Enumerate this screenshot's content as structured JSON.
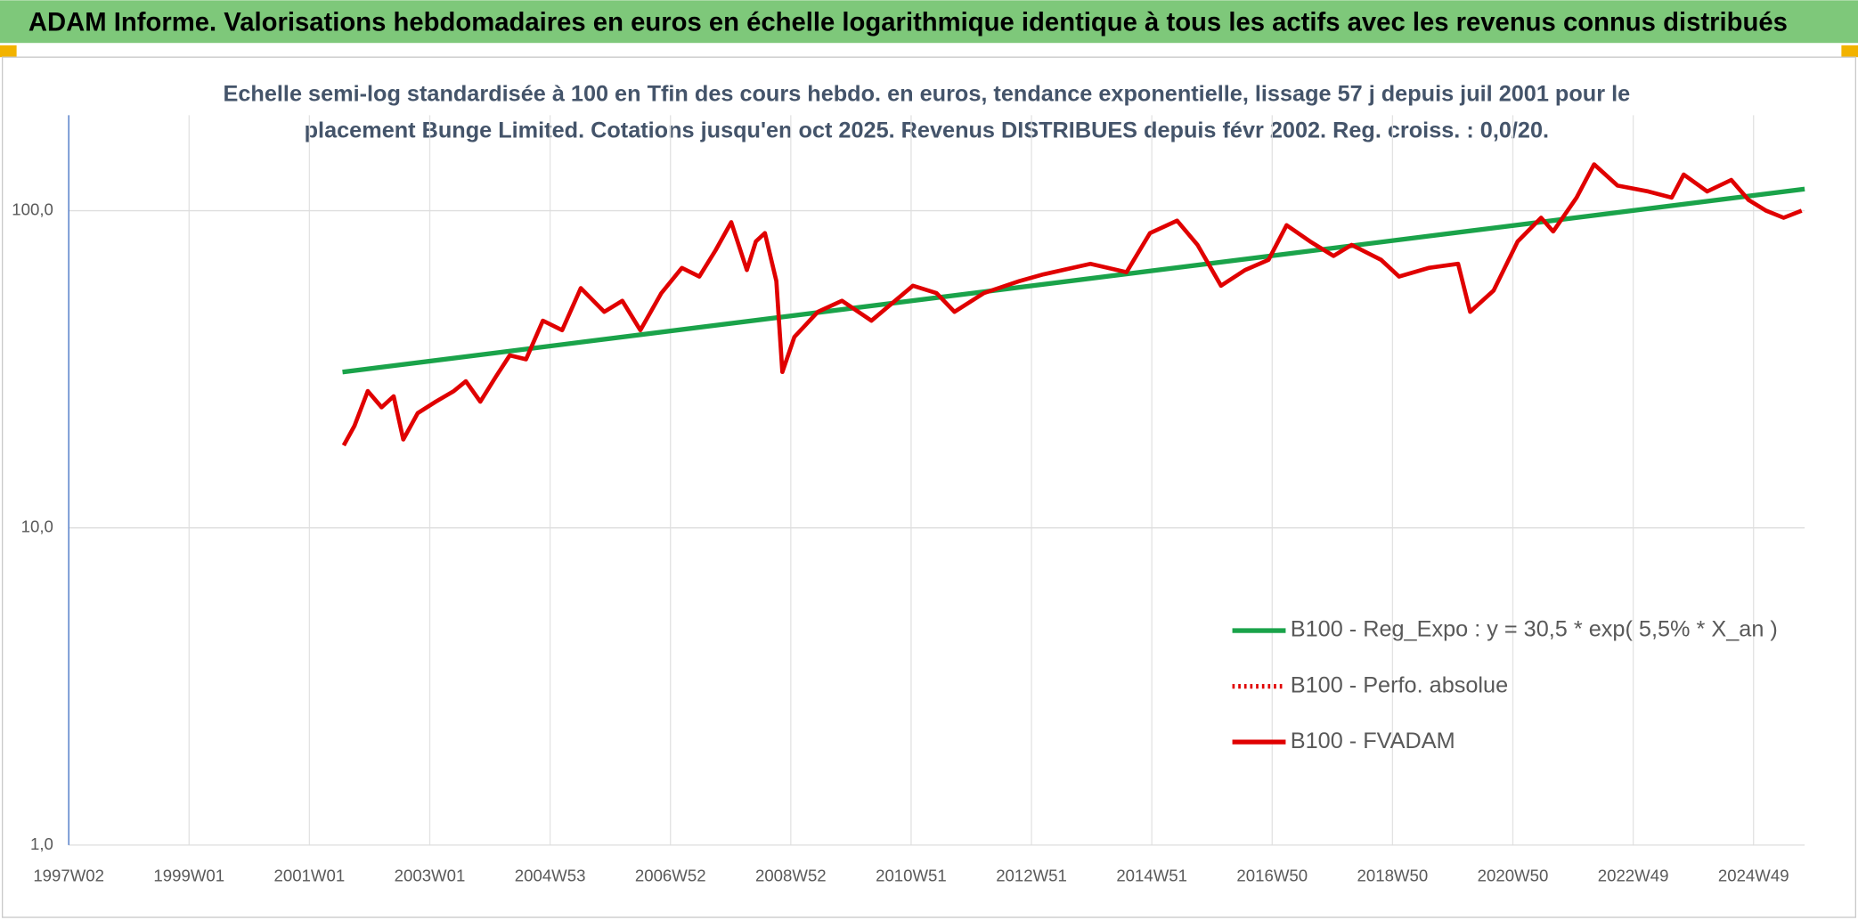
{
  "header": {
    "title": "ADAM Informe. Valorisations hebdomadaires en euros en échelle logarithmique identique à tous les actifs avec les revenus connus distribués"
  },
  "chart_data": {
    "type": "line",
    "subtitle": [
      "Echelle semi-log standardisée à 100 en Tfin des cours hebdo. en euros, tendance exponentielle, lissage 57 j depuis juil 2001 pour le",
      "placement Bunge Limited. Cotations jusqu'en oct 2025. Revenus DISTRIBUES depuis févr 2002. Reg. croiss. : 0,0/20."
    ],
    "y_scale": "log",
    "grid": true,
    "legend_position": "right",
    "xlim": [
      1997,
      2025.85
    ],
    "ylim": [
      1,
      200
    ],
    "xticks": [
      {
        "value": 1997,
        "label": "1997W02"
      },
      {
        "value": 1999,
        "label": "1999W01"
      },
      {
        "value": 2001,
        "label": "2001W01"
      },
      {
        "value": 2003,
        "label": "2003W01"
      },
      {
        "value": 2005,
        "label": "2004W53"
      },
      {
        "value": 2007,
        "label": "2006W52"
      },
      {
        "value": 2009,
        "label": "2008W52"
      },
      {
        "value": 2011,
        "label": "2010W51"
      },
      {
        "value": 2013,
        "label": "2012W51"
      },
      {
        "value": 2015,
        "label": "2014W51"
      },
      {
        "value": 2017,
        "label": "2016W50"
      },
      {
        "value": 2019,
        "label": "2018W50"
      },
      {
        "value": 2021,
        "label": "2020W50"
      },
      {
        "value": 2023,
        "label": "2022W49"
      },
      {
        "value": 2025,
        "label": "2024W49"
      }
    ],
    "yticks": [
      {
        "value": 1,
        "label": "1,0"
      },
      {
        "value": 10,
        "label": "10,0"
      },
      {
        "value": 100,
        "label": "100,0"
      }
    ],
    "series": [
      {
        "name": "B100 - Reg_Expo : y = 30,5 * exp( 5,5% *  X_an )",
        "color": "#1aa34a",
        "line_style": "solid",
        "x": [
          2001.55,
          2025.85
        ],
        "values": [
          31,
          117
        ]
      },
      {
        "name": "B100 - Perfo. absolue",
        "color": "#e00000",
        "line_style": "dotted",
        "x": [],
        "values": []
      },
      {
        "name": "B100 - FVADAM",
        "color": "#e00000",
        "line_style": "solid",
        "x": [
          2001.57,
          2001.75,
          2001.97,
          2002.2,
          2002.4,
          2002.56,
          2002.8,
          2003.1,
          2003.4,
          2003.6,
          2003.84,
          2004.1,
          2004.33,
          2004.6,
          2004.88,
          2005.2,
          2005.51,
          2005.9,
          2006.2,
          2006.5,
          2006.85,
          2007.19,
          2007.48,
          2007.75,
          2008.01,
          2008.27,
          2008.42,
          2008.57,
          2008.76,
          2008.86,
          2009.06,
          2009.45,
          2009.85,
          2010.34,
          2011.03,
          2011.42,
          2011.72,
          2012.21,
          2012.8,
          2013.2,
          2013.98,
          2014.58,
          2014.97,
          2015.42,
          2015.76,
          2016.15,
          2016.55,
          2016.94,
          2017.24,
          2017.63,
          2018.02,
          2018.32,
          2018.81,
          2019.11,
          2019.6,
          2020.09,
          2020.29,
          2020.68,
          2021.08,
          2021.47,
          2021.67,
          2022.06,
          2022.35,
          2022.74,
          2023.25,
          2023.64,
          2023.84,
          2024.23,
          2024.63,
          2024.92,
          2025.21,
          2025.5,
          2025.8
        ],
        "values": [
          18.2,
          21,
          27,
          24,
          26,
          19,
          23,
          25,
          27,
          29,
          25,
          30,
          35,
          34,
          45,
          42,
          57,
          48,
          52,
          42,
          55,
          66,
          62,
          75,
          92,
          65,
          80,
          85,
          60,
          31,
          40,
          48,
          52,
          45,
          58,
          55,
          48,
          55,
          60,
          63,
          68,
          64,
          85,
          93,
          78,
          58,
          65,
          70,
          90,
          80,
          72,
          78,
          70,
          62,
          66,
          68,
          48,
          56,
          80,
          95,
          86,
          110,
          140,
          120,
          115,
          110,
          130,
          115,
          125,
          108,
          100,
          95,
          100
        ]
      }
    ]
  }
}
